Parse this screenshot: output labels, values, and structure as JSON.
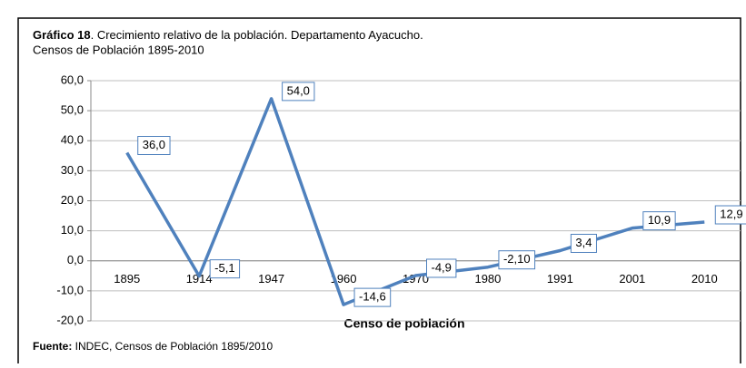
{
  "chart_data": {
    "type": "line",
    "title_bold": "Gráfico 18",
    "title": ". Crecimiento relativo de la población. Departamento Ayacucho.",
    "subtitle": "Censos de Población 1895-2010",
    "x_label": "Censo de población",
    "source_bold": "Fuente:",
    "source": " INDEC, Censos de Población 1895/2010",
    "categories": [
      "1895",
      "1914",
      "1947",
      "1960",
      "1970",
      "1980",
      "1991",
      "2001",
      "2010"
    ],
    "series": [
      {
        "name": "Crecimiento relativo",
        "color": "#4f81bd",
        "values": [
          36.0,
          -5.1,
          54.0,
          -14.6,
          -4.9,
          -2.1,
          3.4,
          10.9,
          12.9
        ],
        "value_labels": [
          "36,0",
          "-5,1",
          "54,0",
          "-14,6",
          "-4,9",
          "-2,10",
          "3,4",
          "10,9",
          "12,9"
        ]
      }
    ],
    "ylim": [
      -20,
      60
    ],
    "yticks": [
      {
        "value": -20,
        "label": "-20,0"
      },
      {
        "value": -10,
        "label": "-10,0"
      },
      {
        "value": 0,
        "label": "0,0"
      },
      {
        "value": 10,
        "label": "10,0"
      },
      {
        "value": 20,
        "label": "20,0"
      },
      {
        "value": 30,
        "label": "30,0"
      },
      {
        "value": 40,
        "label": "40,0"
      },
      {
        "value": 50,
        "label": "50,0"
      },
      {
        "value": 60,
        "label": "60,0"
      }
    ],
    "grid": true
  }
}
